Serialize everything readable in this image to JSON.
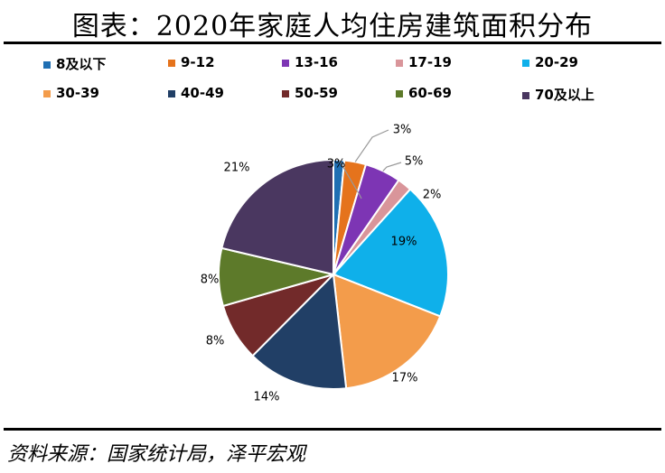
{
  "title": "图表：2020年家庭人均住房建筑面积分布",
  "source": "资料来源：国家统计局，泽平宏观",
  "chart_data": {
    "type": "pie",
    "title": "图表：2020年家庭人均住房建筑面积分布",
    "legend_position": "top",
    "categories": [
      "8及以下",
      "9-12",
      "13-16",
      "17-19",
      "20-29",
      "30-39",
      "40-49",
      "50-59",
      "60-69",
      "70及以上"
    ],
    "values": [
      1.5,
      3,
      5,
      2,
      19,
      17,
      14,
      8,
      8,
      21
    ],
    "labels": [
      "",
      "3%",
      "5%",
      "2%",
      "19%",
      "17%",
      "14%",
      "8%",
      "8%",
      "21%"
    ],
    "extra_label": "3%",
    "colors": [
      "#1f6fb3",
      "#e5731c",
      "#7d35b4",
      "#d9959a",
      "#0fb0ea",
      "#f39c4b",
      "#213f66",
      "#722a2a",
      "#5d7a2a",
      "#4a3760"
    ]
  }
}
